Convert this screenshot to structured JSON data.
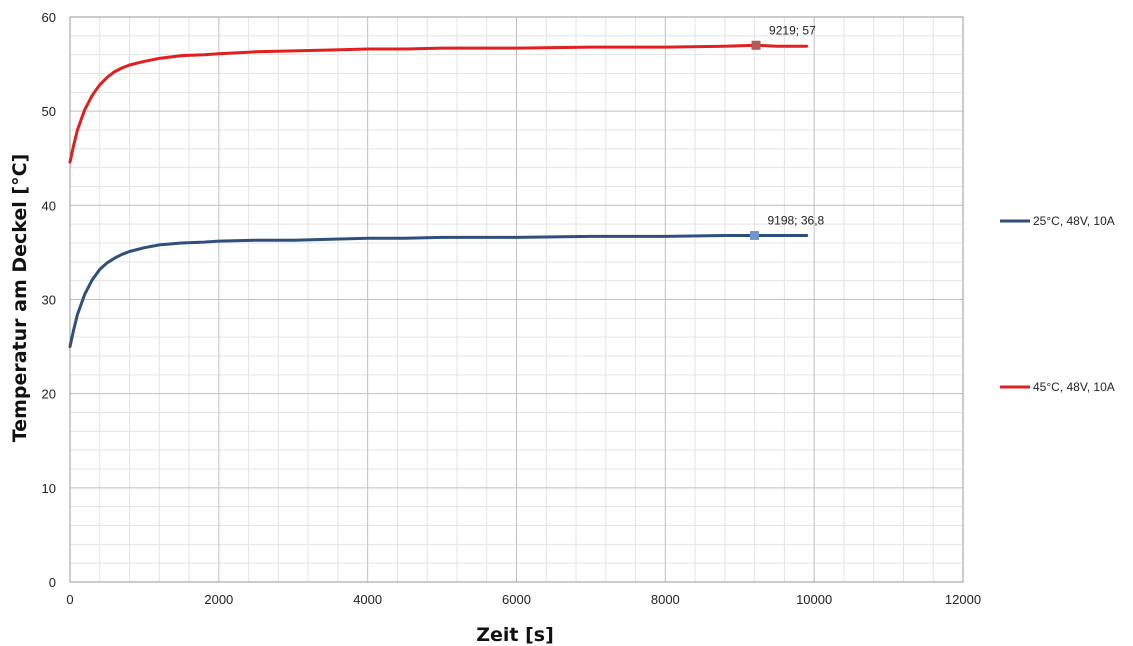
{
  "chart_data": {
    "type": "line",
    "xlabel": "Zeit [s]",
    "ylabel": "Temperatur am Deckel [°C]",
    "xlim": [
      0,
      12000
    ],
    "ylim": [
      0,
      60
    ],
    "x_ticks": [
      "0",
      "2000",
      "4000",
      "6000",
      "8000",
      "10000",
      "12000"
    ],
    "y_ticks": [
      "0",
      "10",
      "20",
      "30",
      "40",
      "50",
      "60"
    ],
    "grid": true,
    "legend_position": "right",
    "series": [
      {
        "name": "25°C, 48V, 10A",
        "color": "#2e4f7e",
        "x": [
          0,
          50,
          100,
          200,
          300,
          400,
          500,
          600,
          700,
          800,
          1000,
          1200,
          1500,
          1800,
          2000,
          2500,
          3000,
          3500,
          4000,
          4500,
          5000,
          6000,
          7000,
          8000,
          8800,
          9198,
          9500,
          9900
        ],
        "y": [
          25.0,
          26.8,
          28.4,
          30.6,
          32.1,
          33.2,
          33.9,
          34.4,
          34.8,
          35.1,
          35.5,
          35.8,
          36.0,
          36.1,
          36.2,
          36.3,
          36.3,
          36.4,
          36.5,
          36.5,
          36.6,
          36.6,
          36.7,
          36.7,
          36.8,
          36.8,
          36.8,
          36.8
        ]
      },
      {
        "name": "45°C, 48V, 10A",
        "color": "#e21f1f",
        "x": [
          0,
          50,
          100,
          200,
          300,
          400,
          500,
          600,
          700,
          800,
          1000,
          1200,
          1500,
          1800,
          2000,
          2500,
          3000,
          3500,
          4000,
          4500,
          5000,
          6000,
          7000,
          8000,
          8800,
          9219,
          9500,
          9900
        ],
        "y": [
          44.6,
          46.4,
          48.0,
          50.2,
          51.7,
          52.8,
          53.6,
          54.2,
          54.6,
          54.9,
          55.3,
          55.6,
          55.9,
          56.0,
          56.1,
          56.3,
          56.4,
          56.5,
          56.6,
          56.6,
          56.7,
          56.7,
          56.8,
          56.8,
          56.9,
          57.0,
          56.9,
          56.9
        ]
      }
    ],
    "annotations": [
      {
        "label": "9198; 36,8",
        "x": 9198,
        "y": 36.8,
        "marker_color": "#6f97cd"
      },
      {
        "label": "9219; 57",
        "x": 9219,
        "y": 57,
        "marker_color": "#b35a5a"
      }
    ]
  }
}
